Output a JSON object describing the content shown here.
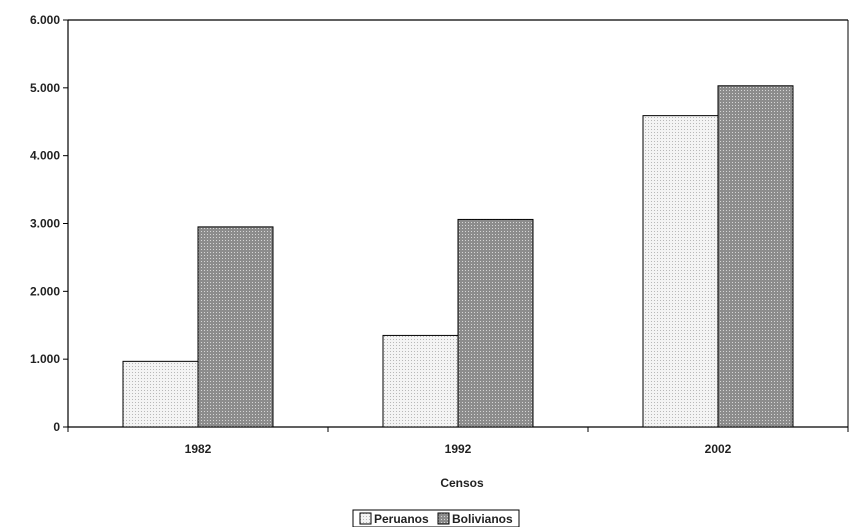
{
  "chart_data": {
    "type": "bar",
    "title": "",
    "xlabel": "Censos",
    "ylabel": "",
    "categories": [
      "1982",
      "1992",
      "2002"
    ],
    "series": [
      {
        "name": "Peruanos",
        "values": [
          968,
          1350,
          4590
        ],
        "color": "#eeeeee"
      },
      {
        "name": "Bolivianos",
        "values": [
          2950,
          3060,
          5030
        ],
        "color": "#999999"
      }
    ],
    "ylim": [
      0,
      6000
    ],
    "yticks": [
      0,
      1000,
      2000,
      3000,
      4000,
      5000,
      6000
    ],
    "ytick_labels": [
      "0",
      "1.000",
      "2.000",
      "3.000",
      "4.000",
      "5.000",
      "6.000"
    ],
    "grid": false,
    "legend_position": "bottom-center"
  }
}
